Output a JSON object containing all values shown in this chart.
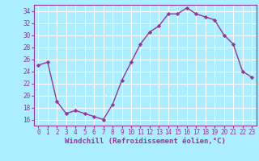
{
  "x": [
    0,
    1,
    2,
    3,
    4,
    5,
    6,
    7,
    8,
    9,
    10,
    11,
    12,
    13,
    14,
    15,
    16,
    17,
    18,
    19,
    20,
    21,
    22,
    23
  ],
  "y": [
    25.0,
    25.5,
    19.0,
    17.0,
    17.5,
    17.0,
    16.5,
    16.0,
    18.5,
    22.5,
    25.5,
    28.5,
    30.5,
    31.5,
    33.5,
    33.5,
    34.5,
    33.5,
    33.0,
    32.5,
    30.0,
    28.5,
    24.0,
    23.0
  ],
  "line_color": "#993399",
  "marker": "D",
  "markersize": 2.2,
  "linewidth": 1.0,
  "bg_color": "#aaeeff",
  "grid_color": "#ffffff",
  "xlabel": "Windchill (Refroidissement éolien,°C)",
  "xlabel_fontsize": 6.5,
  "tick_fontsize": 5.5,
  "ylim": [
    15,
    35
  ],
  "xlim": [
    -0.5,
    23.5
  ],
  "yticks": [
    16,
    18,
    20,
    22,
    24,
    26,
    28,
    30,
    32,
    34
  ],
  "xticks": [
    0,
    1,
    2,
    3,
    4,
    5,
    6,
    7,
    8,
    9,
    10,
    11,
    12,
    13,
    14,
    15,
    16,
    17,
    18,
    19,
    20,
    21,
    22,
    23
  ]
}
